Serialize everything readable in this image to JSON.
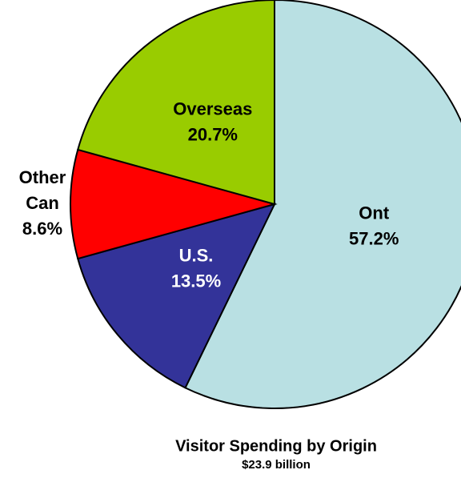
{
  "chart_data": {
    "type": "pie",
    "title": "Visitor Spending by Origin",
    "subtitle": "$23.9 billion",
    "categories": [
      "Ont",
      "U.S.",
      "Other Can",
      "Overseas"
    ],
    "values": [
      57.2,
      13.5,
      8.6,
      20.7
    ],
    "value_labels": [
      "57.2%",
      "13.5%",
      "8.6%",
      "20.7%"
    ],
    "colors": [
      "#b9e0e3",
      "#333399",
      "#ff0000",
      "#99cc00"
    ]
  }
}
